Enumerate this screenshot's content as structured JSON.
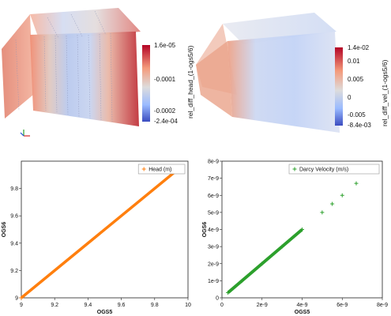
{
  "top_left": {
    "colorbar": {
      "title": "rel_diff_head_(1-ogs5/6)",
      "ticks": [
        "1.6e-05",
        "-0.0001",
        "-0.0002",
        "-2.4e-04"
      ],
      "colors": [
        "#b40426",
        "#f49a7b",
        "#dddcdc",
        "#9abbff",
        "#3b4cc0"
      ]
    }
  },
  "top_right": {
    "colorbar": {
      "title": "rel_diff_vel_(1-ogs5/6)",
      "ticks": [
        "1.4e-02",
        "0.01",
        "0.005",
        "0",
        "-0.005",
        "-8.4e-03"
      ],
      "colors": [
        "#b40426",
        "#f49a7b",
        "#dddcdc",
        "#9abbff",
        "#3b4cc0"
      ]
    }
  },
  "chart_data": [
    {
      "type": "line",
      "xlabel": "OGS5",
      "ylabel": "OGS6",
      "xlim": [
        9,
        10
      ],
      "ylim": [
        9,
        10
      ],
      "xticks": [
        "9",
        "9.2",
        "9.4",
        "9.6",
        "9.8",
        "10"
      ],
      "yticks": [
        "9",
        "9.2",
        "9.4",
        "9.6",
        "9.8"
      ],
      "legend_position": "top-right",
      "series": [
        {
          "name": "Head (m)",
          "color": "#ff7f0e",
          "marker": "plus",
          "x": [
            9.0,
            9.95
          ],
          "y": [
            9.0,
            9.95
          ]
        }
      ]
    },
    {
      "type": "scatter",
      "xlabel": "OGS5",
      "ylabel": "OGS6",
      "xlim": [
        0,
        8e-09
      ],
      "ylim": [
        0,
        8e-09
      ],
      "xticks": [
        "0",
        "2e-9",
        "4e-9",
        "6e-9",
        "8e-9"
      ],
      "yticks": [
        "0",
        "1e-9",
        "2e-9",
        "3e-9",
        "4e-9",
        "5e-9",
        "6e-9",
        "7e-9",
        "8e-9"
      ],
      "legend_position": "top-right",
      "series": [
        {
          "name": "Darcy Velocity (m/s)",
          "color": "#2ca02c",
          "marker": "plus",
          "x": [
            3e-10,
            1e-09,
            2e-09,
            3e-09,
            4e-09,
            5e-09,
            5.5e-09,
            6e-09,
            6.7e-09
          ],
          "y": [
            3e-10,
            1e-09,
            2e-09,
            3e-09,
            4e-09,
            5e-09,
            5.5e-09,
            6e-09,
            6.7e-09
          ]
        }
      ]
    }
  ]
}
